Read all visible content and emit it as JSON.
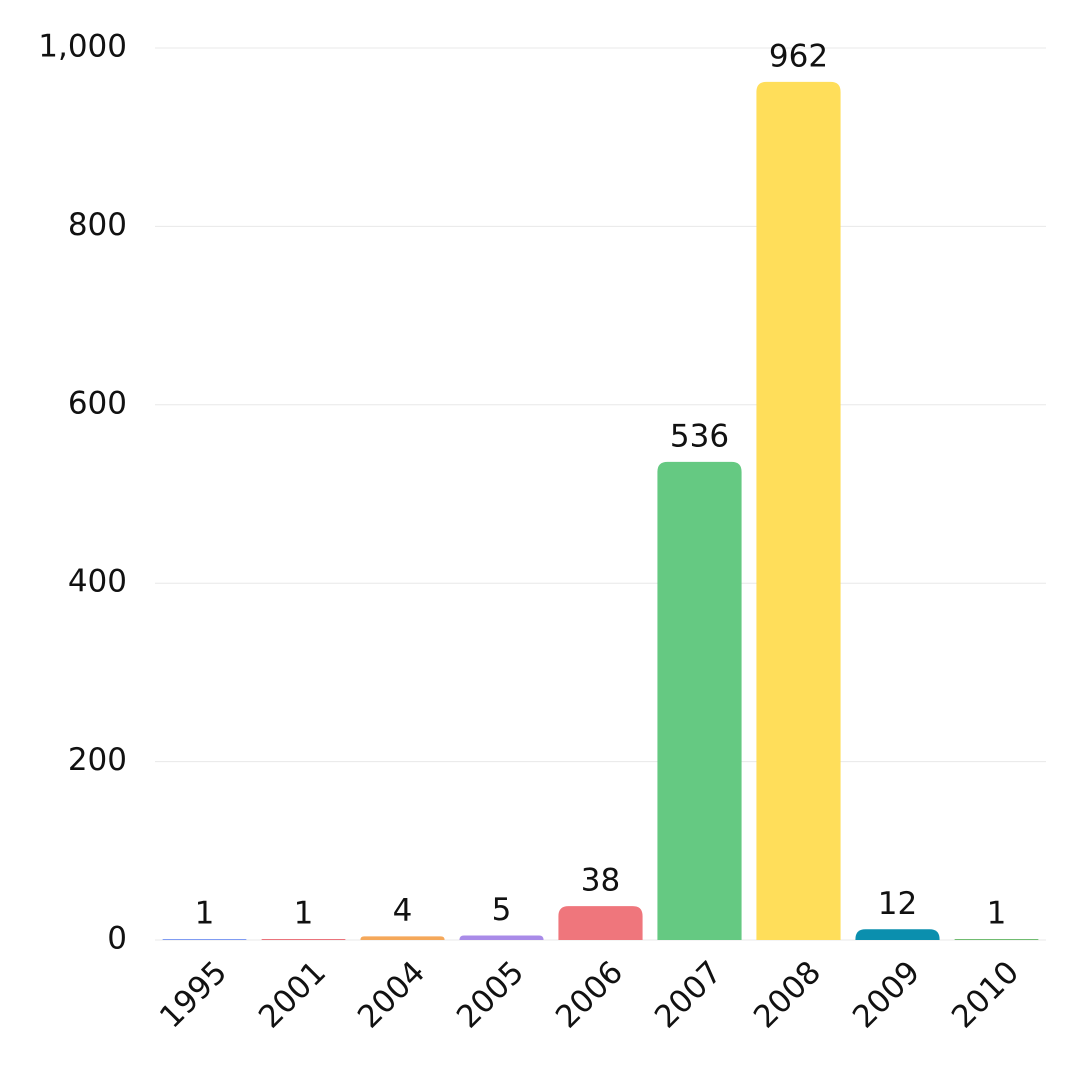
{
  "chart_data": {
    "type": "bar",
    "categories": [
      "1995",
      "2001",
      "2004",
      "2005",
      "2006",
      "2007",
      "2008",
      "2009",
      "2010"
    ],
    "values": [
      1,
      1,
      4,
      5,
      38,
      536,
      962,
      12,
      1
    ],
    "colors": [
      "#6f8ff0",
      "#e8606a",
      "#f5a85a",
      "#a98be8",
      "#ef767c",
      "#65c982",
      "#ffde5a",
      "#0b8fae",
      "#5db35d"
    ],
    "ylim": [
      0,
      1000
    ],
    "yticks": [
      0,
      200,
      400,
      600,
      800,
      {
        "value": 1000,
        "label": "1,000"
      }
    ],
    "grid": true
  }
}
